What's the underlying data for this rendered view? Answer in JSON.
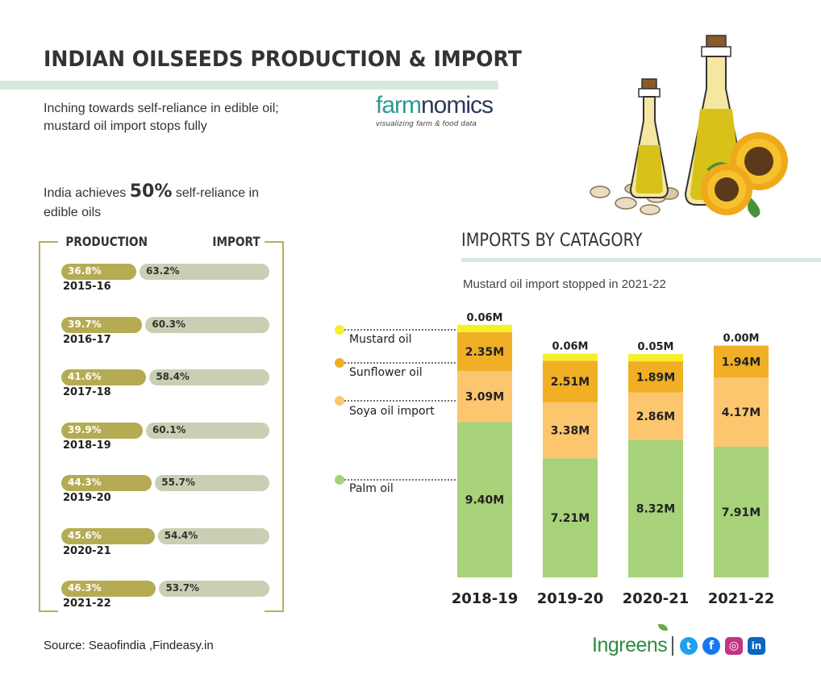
{
  "header": {
    "title": "INDIAN OILSEEDS PRODUCTION & IMPORT",
    "subtitle_line1": "Inching towards self-reliance in edible oil;",
    "subtitle_line2": "mustard oil import stops fully"
  },
  "logo": {
    "part1": "farm",
    "part2": "nomics",
    "tagline": "visualizing farm & food data"
  },
  "reliance": {
    "prefix": "India achieves ",
    "highlight": "50%",
    "suffix": " self-reliance in",
    "line2": "edible oils"
  },
  "self_reliance_labels": {
    "production": "PRODUCTION",
    "import": "IMPORT"
  },
  "source": "Source: Seaofindia ,Findeasy.in",
  "imports_section": {
    "title": "IMPORTS BY CATAGORY",
    "subtitle": "Mustard oil import stopped in 2021-22"
  },
  "brand": {
    "name": "Ingreens"
  },
  "colors": {
    "production": "#b5ab52",
    "import": "#c9cfb2",
    "palm": "#a7d279",
    "soya": "#fcc66f",
    "sunflower": "#f0af24",
    "mustard": "#f7ee2d"
  },
  "icons": [
    "twitter-icon",
    "facebook-icon",
    "instagram-icon",
    "linkedin-icon",
    "oil-bottles-illustration",
    "sunflower-illustration"
  ],
  "chart_data": [
    {
      "type": "bar",
      "orientation": "horizontal-stacked-100",
      "categories": [
        "2015-16",
        "2016-17",
        "2017-18",
        "2018-19",
        "2019-20",
        "2020-21",
        "2021-22"
      ],
      "series": [
        {
          "name": "PRODUCTION",
          "values": [
            36.8,
            39.7,
            41.6,
            39.9,
            44.3,
            45.6,
            46.3
          ],
          "labels": [
            "36.8%",
            "39.7%",
            "41.6%",
            "39.9%",
            "44.3%",
            "45.6%",
            "46.3%"
          ]
        },
        {
          "name": "IMPORT",
          "values": [
            63.2,
            60.3,
            58.4,
            60.1,
            55.7,
            54.4,
            53.7
          ],
          "labels": [
            "63.2%",
            "60.3%",
            "58.4%",
            "60.1%",
            "55.7%",
            "54.4%",
            "53.7%"
          ]
        }
      ]
    },
    {
      "type": "bar",
      "orientation": "vertical-stacked",
      "categories": [
        "2018-19",
        "2019-20",
        "2020-21",
        "2021-22"
      ],
      "series": [
        {
          "name": "Palm oil",
          "values": [
            9.4,
            7.21,
            8.32,
            7.91
          ],
          "labels": [
            "9.40M",
            "7.21M",
            "8.32M",
            "7.91M"
          ]
        },
        {
          "name": "Soya oil import",
          "values": [
            3.09,
            3.38,
            2.86,
            4.17
          ],
          "labels": [
            "3.09M",
            "3.38M",
            "2.86M",
            "4.17M"
          ]
        },
        {
          "name": "Sunflower oil",
          "values": [
            2.35,
            2.51,
            1.89,
            1.94
          ],
          "labels": [
            "2.35M",
            "2.51M",
            "1.89M",
            "1.94M"
          ]
        },
        {
          "name": "Mustard oil",
          "values": [
            0.06,
            0.06,
            0.05,
            0.0
          ],
          "labels": [
            "0.06M",
            "0.06M",
            "0.05M",
            "0.00M"
          ]
        }
      ],
      "legend": "left"
    }
  ]
}
